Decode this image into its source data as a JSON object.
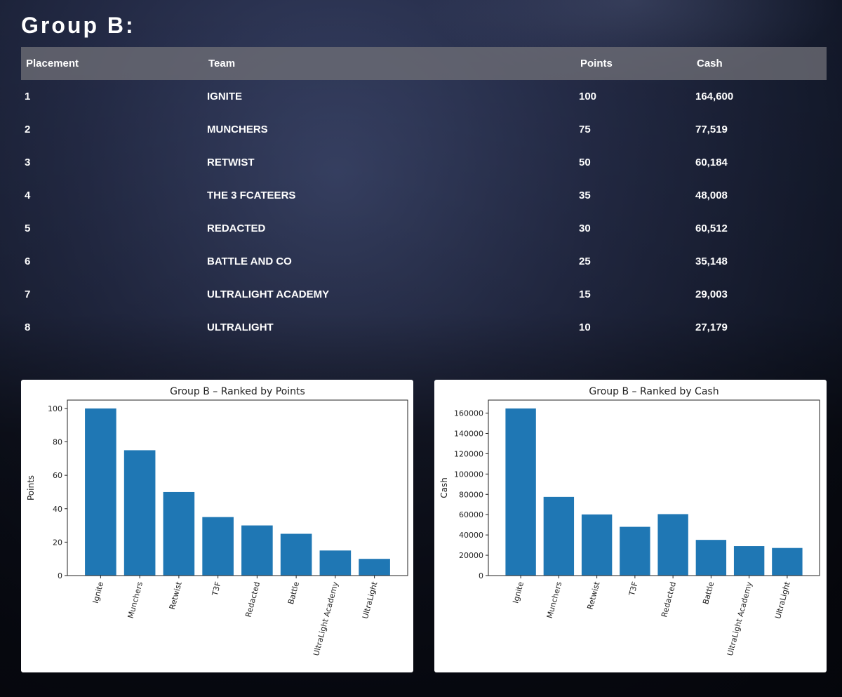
{
  "header": {
    "title": "Group B:"
  },
  "table": {
    "columns": [
      "Placement",
      "Team",
      "Points",
      "Cash"
    ],
    "rows": [
      {
        "placement": "1",
        "team": "IGNITE",
        "points": "100",
        "cash": "164,600"
      },
      {
        "placement": "2",
        "team": "MUNCHERS",
        "points": "75",
        "cash": "77,519"
      },
      {
        "placement": "3",
        "team": "RETWIST",
        "points": "50",
        "cash": "60,184"
      },
      {
        "placement": "4",
        "team": "THE 3 FCATEERS",
        "points": "35",
        "cash": "48,008"
      },
      {
        "placement": "5",
        "team": "REDACTED",
        "points": "30",
        "cash": "60,512"
      },
      {
        "placement": "6",
        "team": "BATTLE AND CO",
        "points": "25",
        "cash": "35,148"
      },
      {
        "placement": "7",
        "team": "ULTRALIGHT ACADEMY",
        "points": "15",
        "cash": "29,003"
      },
      {
        "placement": "8",
        "team": "ULTRALIGHT",
        "points": "10",
        "cash": "27,179"
      }
    ]
  },
  "colors": {
    "bar": "#1f77b4"
  },
  "chart_data": [
    {
      "type": "bar",
      "title": "Group B – Ranked by Points",
      "xlabel": "",
      "ylabel": "Points",
      "categories": [
        "Ignite",
        "Munchers",
        "Retwist",
        "T3F",
        "Redacted",
        "Battle",
        "UltraLight Academy",
        "UltraLight"
      ],
      "values": [
        100,
        75,
        50,
        35,
        30,
        25,
        15,
        10
      ],
      "ylim": [
        0,
        105
      ],
      "yticks": [
        0,
        20,
        40,
        60,
        80,
        100
      ],
      "grid": false,
      "legend": "none"
    },
    {
      "type": "bar",
      "title": "Group B – Ranked by Cash",
      "xlabel": "",
      "ylabel": "Cash",
      "categories": [
        "Ignite",
        "Munchers",
        "Retwist",
        "T3F",
        "Redacted",
        "Battle",
        "UltraLight Academy",
        "UltraLight"
      ],
      "values": [
        164600,
        77519,
        60184,
        48008,
        60512,
        35148,
        29003,
        27179
      ],
      "ylim": [
        0,
        172830
      ],
      "yticks": [
        0,
        20000,
        40000,
        60000,
        80000,
        100000,
        120000,
        140000,
        160000
      ],
      "grid": false,
      "legend": "none"
    }
  ]
}
